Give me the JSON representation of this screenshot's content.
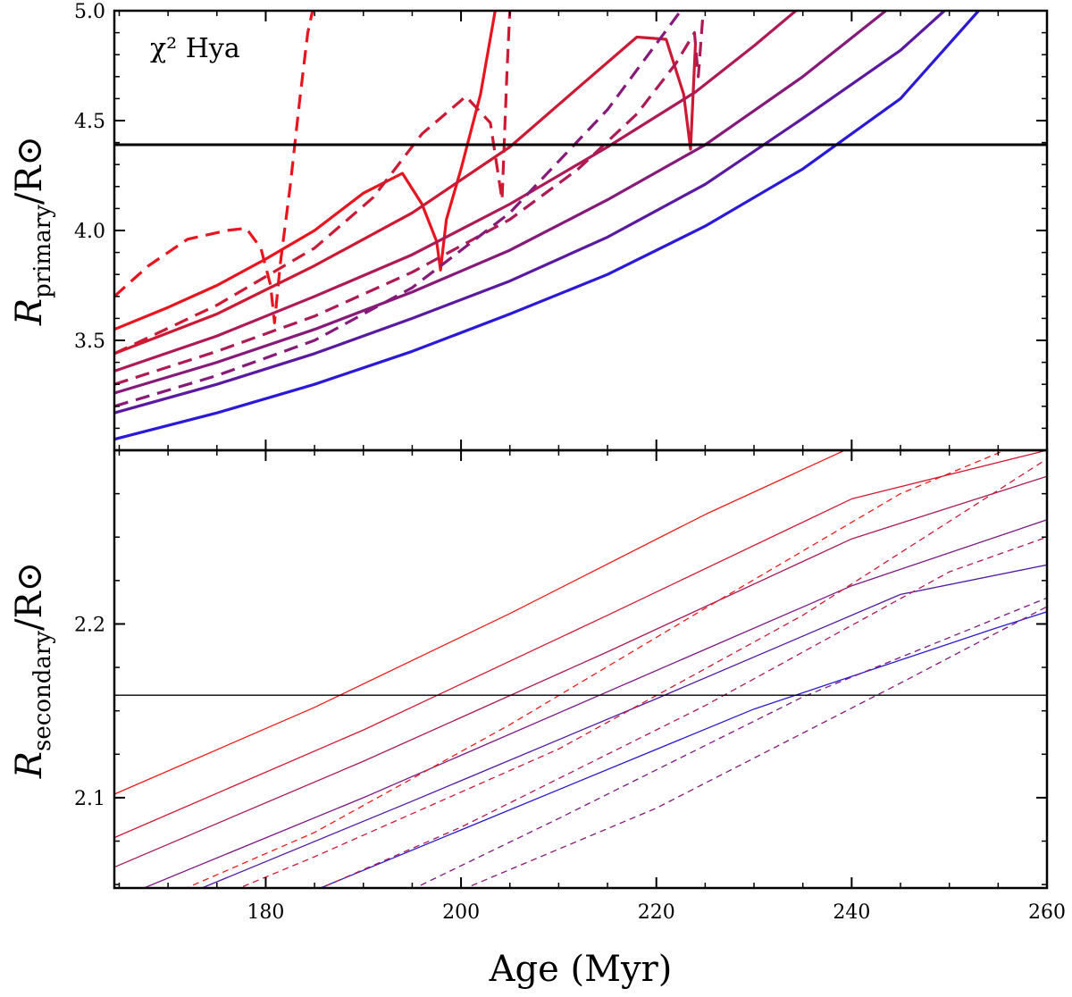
{
  "chart_data": [
    {
      "type": "line",
      "panel": "top",
      "annotation": "χ² Hya",
      "ylabel": "R_primary/R⊙",
      "ylabel_main": "R",
      "ylabel_sub": "primary",
      "ylabel_tail": "/R⊙",
      "xlim": [
        164.5,
        260
      ],
      "ylim": [
        3.0,
        5.0
      ],
      "grid": false,
      "yticks": [
        "3.5",
        "4.0",
        "4.5",
        "5.0"
      ],
      "ytick_values": [
        3.5,
        4.0,
        4.5,
        5.0
      ],
      "observed_radius": 4.39,
      "series": [
        {
          "name": "solid 1",
          "color": "#e8141e",
          "style": "solid",
          "x": [
            164.5,
            170,
            175,
            180,
            185,
            190,
            194,
            196,
            197.5,
            197.9,
            198.5,
            200,
            202,
            203.5
          ],
          "y": [
            3.55,
            3.65,
            3.75,
            3.87,
            4.0,
            4.17,
            4.26,
            4.12,
            3.95,
            3.82,
            4.05,
            4.28,
            4.62,
            5.0
          ]
        },
        {
          "name": "dashed 1",
          "color": "#e8141e",
          "style": "dashed",
          "x": [
            164.5,
            168,
            172,
            176,
            178,
            179.5,
            180.5,
            180.9,
            181.5,
            182.5,
            183.5,
            184.3,
            184.8
          ],
          "y": [
            3.7,
            3.84,
            3.96,
            4.0,
            4.01,
            3.92,
            3.75,
            3.58,
            3.85,
            4.2,
            4.6,
            4.9,
            5.0
          ]
        },
        {
          "name": "solid 2",
          "color": "#cc1a35",
          "style": "solid",
          "x": [
            164.5,
            175,
            185,
            195,
            205,
            212,
            218,
            221,
            222.8,
            223.5,
            224.0
          ],
          "y": [
            3.44,
            3.62,
            3.84,
            4.08,
            4.38,
            4.65,
            4.88,
            4.87,
            4.62,
            4.37,
            4.85
          ]
        },
        {
          "name": "dashed 2",
          "color": "#cc1a35",
          "style": "dashed",
          "x": [
            164.5,
            175,
            185,
            191,
            196,
            200.5,
            203,
            204.2,
            204.7,
            205.0
          ],
          "y": [
            3.44,
            3.66,
            3.92,
            4.15,
            4.44,
            4.61,
            4.49,
            4.14,
            4.72,
            5.0
          ]
        },
        {
          "name": "solid 3",
          "color": "#ad1a55",
          "style": "solid",
          "x": [
            164.5,
            175,
            185,
            195,
            205,
            215,
            224,
            230,
            234.3
          ],
          "y": [
            3.36,
            3.52,
            3.7,
            3.89,
            4.12,
            4.38,
            4.63,
            4.84,
            5.0
          ]
        },
        {
          "name": "dashed 3",
          "color": "#ad1a55",
          "style": "dashed",
          "x": [
            164.5,
            175,
            185,
            195,
            205,
            212,
            218,
            222,
            223.9,
            224.3,
            224.8
          ],
          "y": [
            3.3,
            3.45,
            3.61,
            3.81,
            4.05,
            4.28,
            4.53,
            4.76,
            4.9,
            4.7,
            5.0
          ]
        },
        {
          "name": "solid 4",
          "color": "#851a78",
          "style": "solid",
          "x": [
            164.5,
            175,
            185,
            195,
            205,
            215,
            225,
            235,
            243.5
          ],
          "y": [
            3.26,
            3.4,
            3.55,
            3.72,
            3.91,
            4.14,
            4.39,
            4.7,
            5.0
          ]
        },
        {
          "name": "dashed 4",
          "color": "#851a78",
          "style": "dashed",
          "x": [
            164.5,
            175,
            185,
            195,
            205,
            215,
            222.5
          ],
          "y": [
            3.2,
            3.34,
            3.5,
            3.74,
            4.08,
            4.55,
            5.0
          ]
        },
        {
          "name": "solid 5",
          "color": "#5a1aa0",
          "style": "solid",
          "x": [
            164.5,
            175,
            185,
            195,
            205,
            215,
            225,
            235,
            245,
            249.5
          ],
          "y": [
            3.17,
            3.3,
            3.44,
            3.6,
            3.77,
            3.97,
            4.21,
            4.51,
            4.82,
            5.0
          ]
        },
        {
          "name": "solid 6",
          "color": "#2a1ad8",
          "style": "solid",
          "x": [
            164.5,
            175,
            185,
            195,
            205,
            215,
            225,
            235,
            245,
            253
          ],
          "y": [
            3.05,
            3.17,
            3.3,
            3.45,
            3.62,
            3.8,
            4.02,
            4.28,
            4.6,
            5.0
          ]
        }
      ]
    },
    {
      "type": "line",
      "panel": "bottom",
      "ylabel": "R_secondary/R⊙",
      "ylabel_main": "R",
      "ylabel_sub": "secondary",
      "ylabel_tail": "/R⊙",
      "xlabel": "Age (Myr)",
      "xlim": [
        164.5,
        260
      ],
      "ylim": [
        2.048,
        2.3
      ],
      "grid": false,
      "xticks": [
        "180",
        "200",
        "220",
        "240",
        "260"
      ],
      "xtick_values": [
        180,
        200,
        220,
        240,
        260
      ],
      "yticks": [
        "2.1",
        "2.2"
      ],
      "ytick_values": [
        2.1,
        2.2
      ],
      "observed_radius": 2.159,
      "series": [
        {
          "name": "solid a",
          "color": "#ee1a1a",
          "style": "solid",
          "x": [
            164.5,
            185,
            205,
            225,
            239.3
          ],
          "y": [
            2.102,
            2.152,
            2.206,
            2.263,
            2.3
          ]
        },
        {
          "name": "solid b",
          "color": "#d41a33",
          "style": "solid",
          "x": [
            164.5,
            190,
            215,
            240,
            260
          ],
          "y": [
            2.077,
            2.139,
            2.205,
            2.272,
            2.3
          ]
        },
        {
          "name": "solid c",
          "color": "#aa1a55",
          "style": "solid",
          "x": [
            164.5,
            190,
            215,
            240,
            260
          ],
          "y": [
            2.06,
            2.121,
            2.184,
            2.249,
            2.285
          ]
        },
        {
          "name": "solid d",
          "color": "#7c1a82",
          "style": "solid",
          "x": [
            164.5,
            190,
            215,
            240,
            260
          ],
          "y": [
            2.041,
            2.1,
            2.161,
            2.222,
            2.26
          ]
        },
        {
          "name": "solid e",
          "color": "#531aa5",
          "style": "solid",
          "x": [
            170,
            195,
            220,
            245,
            260
          ],
          "y": [
            2.04,
            2.098,
            2.157,
            2.217,
            2.234
          ]
        },
        {
          "name": "solid f",
          "color": "#2a1ad0",
          "style": "solid",
          "x": [
            180,
            205,
            230,
            255,
            260
          ],
          "y": [
            2.035,
            2.093,
            2.151,
            2.198,
            2.207
          ]
        },
        {
          "name": "dashed a",
          "color": "#ee1a1a",
          "style": "dashed",
          "x": [
            164.5,
            185,
            205,
            225,
            245,
            255.7
          ],
          "y": [
            2.03,
            2.08,
            2.142,
            2.209,
            2.275,
            2.3
          ]
        },
        {
          "name": "dashed b",
          "color": "#cc1a35",
          "style": "dashed",
          "x": [
            164.5,
            185,
            210,
            235,
            260
          ],
          "y": [
            2.018,
            2.066,
            2.128,
            2.205,
            2.295
          ]
        },
        {
          "name": "dashed c",
          "color": "#ad1a55",
          "style": "dashed",
          "x": [
            175,
            200,
            225,
            250,
            260
          ],
          "y": [
            2.022,
            2.083,
            2.153,
            2.23,
            2.25
          ]
        },
        {
          "name": "dashed d",
          "color": "#7c1a82",
          "style": "dashed",
          "x": [
            185,
            210,
            235,
            260
          ],
          "y": [
            2.02,
            2.088,
            2.158,
            2.215
          ]
        },
        {
          "name": "dashed e",
          "color": "#851a78",
          "style": "dashed",
          "x": [
            195,
            220,
            245,
            260
          ],
          "y": [
            2.035,
            2.094,
            2.166,
            2.21
          ]
        }
      ]
    }
  ]
}
